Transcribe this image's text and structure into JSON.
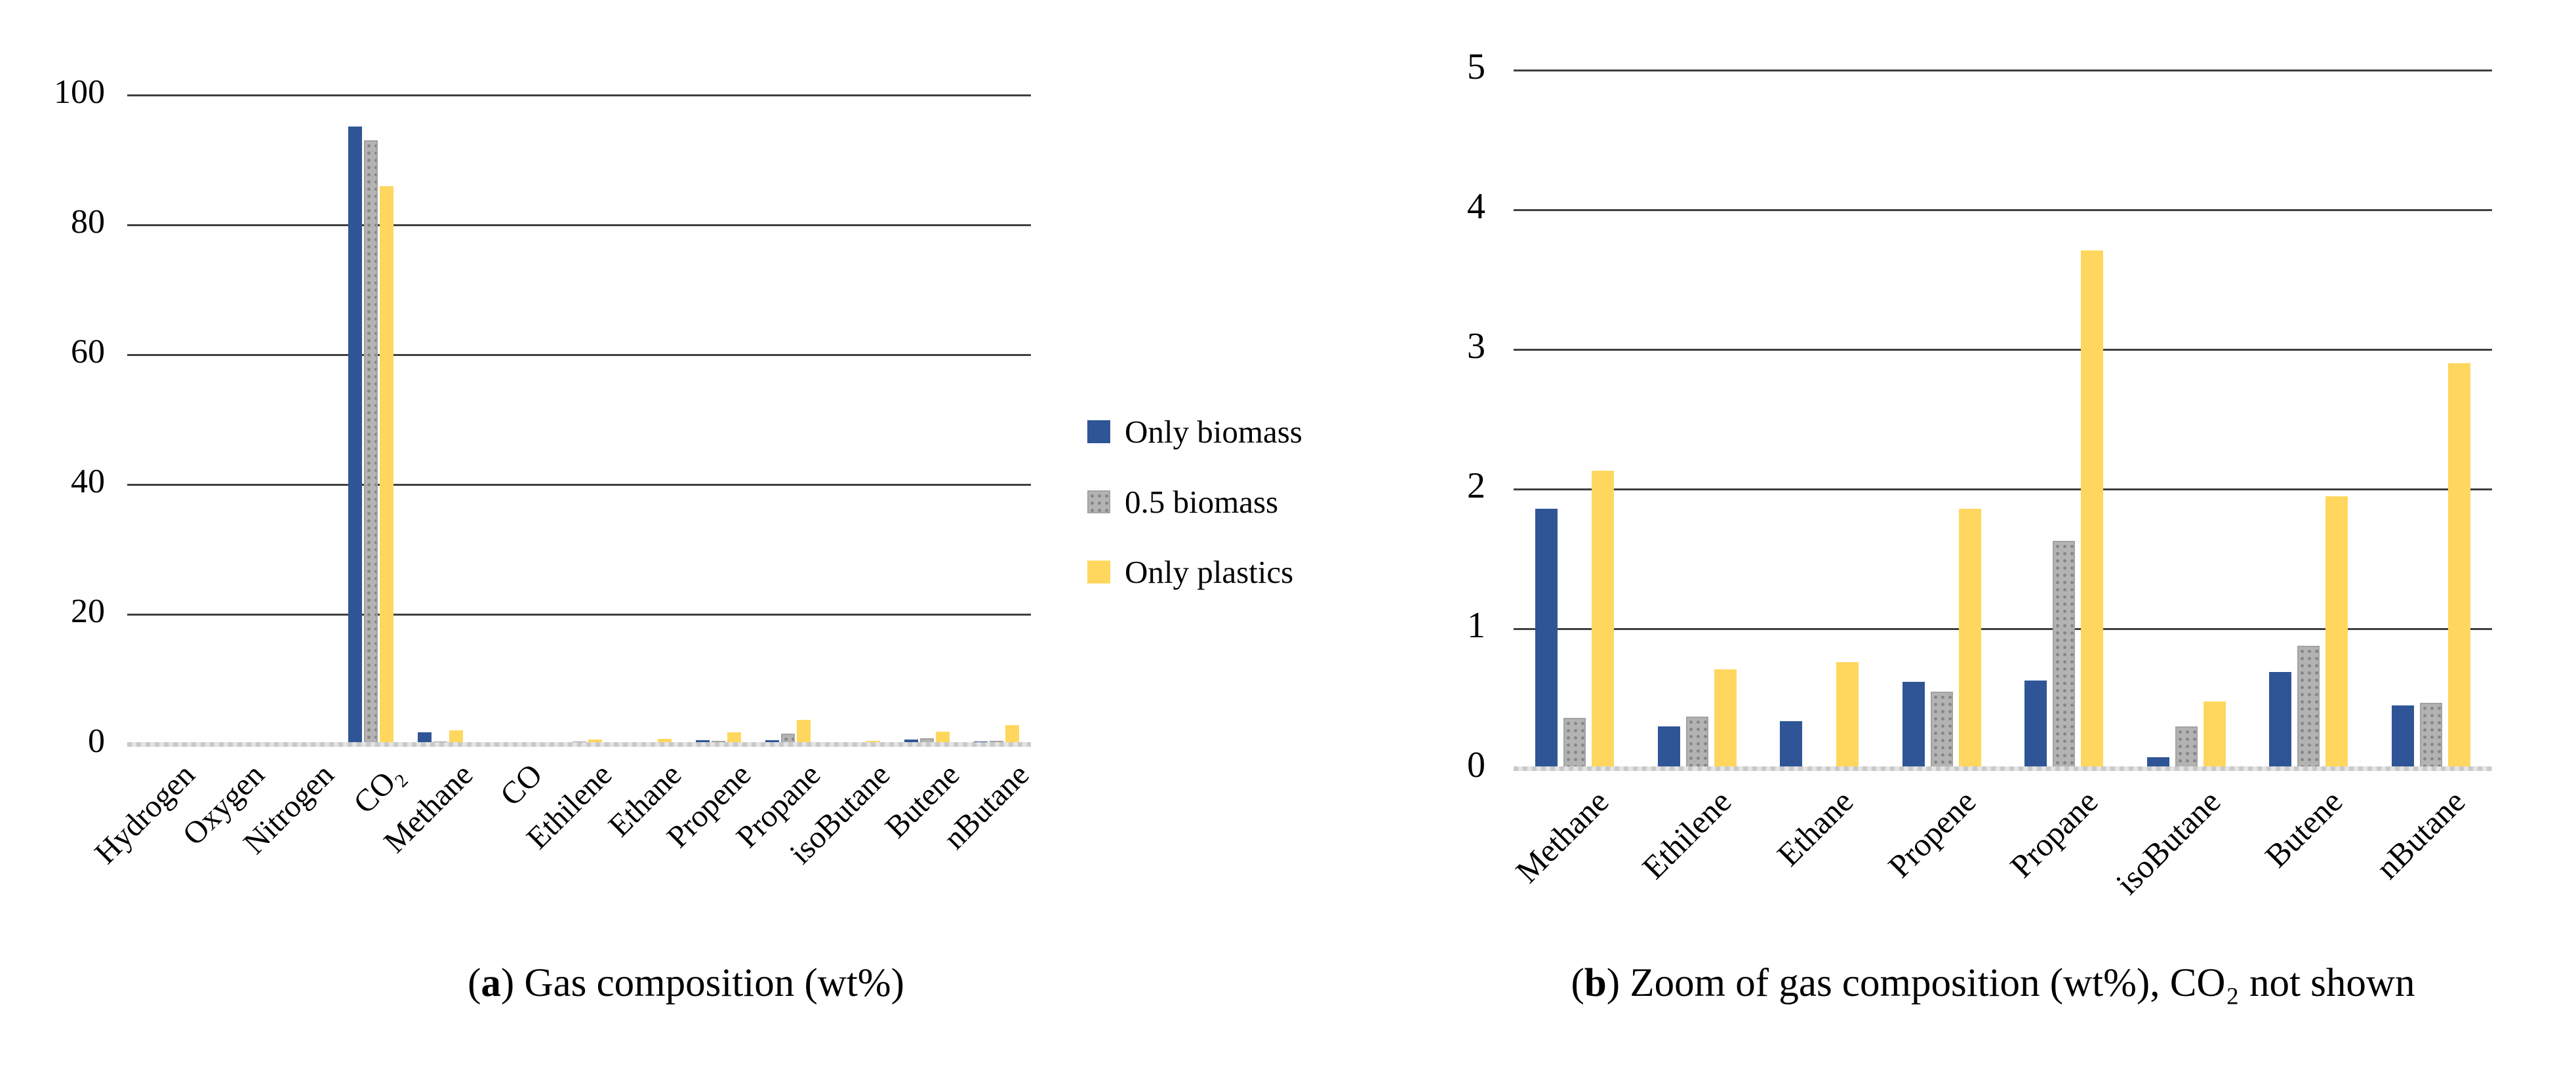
{
  "chart_data": [
    {
      "type": "bar",
      "title": "(a) Gas composition (wt%)",
      "categories": [
        "Hydrogen",
        "Oxygen",
        "Nitrogen",
        "CO₂",
        "Methane",
        "CO",
        "Ethilene",
        "Ethane",
        "Propene",
        "Propane",
        "isoButane",
        "Butene",
        "nButane"
      ],
      "series": [
        {
          "name": "Only biomass",
          "color": "#2F5597",
          "pattern": "solid",
          "values": [
            0,
            0,
            0,
            95.2,
            1.86,
            0,
            0.3,
            0.34,
            0.62,
            0.63,
            0.08,
            0.69,
            0.45
          ]
        },
        {
          "name": "0.5 biomass",
          "color": "#B3B3B3",
          "pattern": "dots",
          "values": [
            0,
            0,
            0,
            93.0,
            0.36,
            0,
            0.37,
            0,
            0.55,
            1.63,
            0.3,
            0.88,
            0.47
          ]
        },
        {
          "name": "Only plastics",
          "color": "#FFD75E",
          "pattern": "solid",
          "values": [
            0,
            0,
            0,
            86.0,
            2.13,
            0,
            0.71,
            0.76,
            1.86,
            3.71,
            0.48,
            1.95,
            2.9
          ]
        }
      ],
      "xlabel": "",
      "ylabel": "",
      "ylim": [
        0,
        100
      ],
      "yticks": [
        0,
        20,
        40,
        60,
        80,
        100
      ],
      "grid": true,
      "legend_position": "right"
    },
    {
      "type": "bar",
      "title": "(b) Zoom of gas composition (wt%), CO₂ not shown",
      "categories": [
        "Methane",
        "Ethilene",
        "Ethane",
        "Propene",
        "Propane",
        "isoButane",
        "Butene",
        "nButane"
      ],
      "series": [
        {
          "name": "Only biomass",
          "color": "#2F5597",
          "pattern": "solid",
          "values": [
            1.86,
            0.3,
            0.34,
            0.62,
            0.63,
            0.08,
            0.69,
            0.45
          ]
        },
        {
          "name": "0.5 biomass",
          "color": "#B3B3B3",
          "pattern": "dots",
          "values": [
            0.36,
            0.37,
            0,
            0.55,
            1.63,
            0.3,
            0.88,
            0.47
          ]
        },
        {
          "name": "Only plastics",
          "color": "#FFD75E",
          "pattern": "solid",
          "values": [
            2.13,
            0.71,
            0.76,
            1.86,
            3.71,
            0.48,
            1.95,
            2.9
          ]
        }
      ],
      "xlabel": "",
      "ylabel": "",
      "ylim": [
        0,
        5
      ],
      "yticks": [
        0,
        1,
        2,
        3,
        4,
        5
      ],
      "grid": true,
      "legend_position": "none"
    }
  ],
  "legend": {
    "items": [
      {
        "label": "Only biomass",
        "color": "#2F5597",
        "pattern": "solid"
      },
      {
        "label": "0.5 biomass",
        "color": "#B3B3B3",
        "pattern": "dots"
      },
      {
        "label": "Only plastics",
        "color": "#FFD75E",
        "pattern": "solid"
      }
    ]
  },
  "captions": {
    "a": {
      "pre": "(",
      "letter": "a",
      "post": ") Gas composition (wt%)"
    },
    "b": {
      "pre": "(",
      "letter": "b",
      "post": ") Zoom of gas composition (wt%), CO₂ not shown"
    }
  }
}
